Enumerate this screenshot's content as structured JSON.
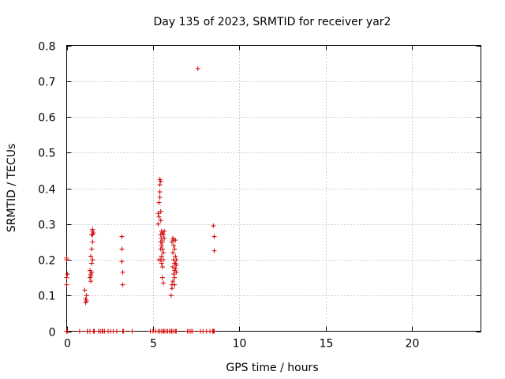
{
  "chart_data": {
    "type": "scatter",
    "title": "Day 135 of 2023, SRMTID for receiver yar2",
    "xlabel": "GPS time / hours",
    "ylabel": "SRMTID / TECUs",
    "xlim": [
      0,
      24
    ],
    "ylim": [
      0,
      0.8
    ],
    "xticks": [
      0,
      5,
      10,
      15,
      20
    ],
    "yticks": [
      0,
      0.1,
      0.2,
      0.3,
      0.4,
      0.5,
      0.6,
      0.7,
      0.8
    ],
    "xtick_labels": [
      "0",
      "5",
      "10",
      "15",
      "20"
    ],
    "ytick_labels": [
      "0",
      "0.1",
      "0.2",
      "0.3",
      "0.4",
      "0.5",
      "0.6",
      "0.7",
      "0.8"
    ],
    "grid": true,
    "marker": "+",
    "color": "#d00000",
    "series": [
      {
        "name": "SRMTID",
        "x": [
          0.0,
          0.0,
          0.0,
          0.0,
          0.0,
          0.05,
          0.05,
          0.75,
          1.05,
          1.1,
          1.1,
          1.15,
          1.15,
          1.2,
          1.2,
          1.35,
          1.35,
          1.35,
          1.4,
          1.4,
          1.4,
          1.4,
          1.45,
          1.45,
          1.45,
          1.45,
          1.5,
          1.5,
          1.5,
          1.5,
          1.5,
          1.55,
          1.55,
          1.6,
          1.85,
          1.95,
          2.05,
          2.1,
          2.2,
          2.4,
          2.55,
          2.7,
          2.9,
          3.2,
          3.2,
          3.2,
          3.25,
          3.25,
          3.25,
          3.3,
          3.8,
          4.85,
          5.0,
          5.15,
          5.3,
          5.3,
          5.3,
          5.35,
          5.35,
          5.35,
          5.4,
          5.4,
          5.4,
          5.4,
          5.4,
          5.45,
          5.45,
          5.45,
          5.45,
          5.45,
          5.45,
          5.45,
          5.5,
          5.5,
          5.5,
          5.5,
          5.5,
          5.5,
          5.55,
          5.55,
          5.55,
          5.55,
          5.55,
          5.6,
          5.6,
          5.6,
          5.6,
          5.6,
          5.65,
          5.65,
          5.65,
          5.75,
          5.85,
          5.95,
          6.05,
          6.05,
          6.1,
          6.1,
          6.1,
          6.1,
          6.15,
          6.15,
          6.15,
          6.15,
          6.2,
          6.2,
          6.2,
          6.2,
          6.2,
          6.25,
          6.25,
          6.25,
          6.25,
          6.25,
          6.3,
          6.3,
          6.3,
          6.3,
          6.3,
          6.35,
          6.35,
          6.35,
          6.35,
          7.0,
          7.1,
          7.2,
          7.3,
          7.6,
          7.75,
          7.9,
          8.1,
          8.3,
          8.45,
          8.5,
          8.5,
          8.55,
          8.55,
          8.55
        ],
        "y": [
          0.0,
          0.13,
          0.15,
          0.2,
          0.205,
          0.16,
          0.0,
          0.0,
          0.115,
          0.08,
          0.09,
          0.1,
          0.085,
          0.0,
          0.0,
          0.0,
          0.17,
          0.15,
          0.14,
          0.155,
          0.16,
          0.21,
          0.23,
          0.27,
          0.165,
          0.19,
          0.28,
          0.285,
          0.25,
          0.27,
          0.2,
          0.275,
          0.0,
          0.0,
          0.0,
          0.0,
          0.0,
          0.0,
          0.0,
          0.0,
          0.0,
          0.0,
          0.0,
          0.265,
          0.23,
          0.195,
          0.165,
          0.13,
          0.0,
          0.0,
          0.0,
          0.0,
          0.0,
          0.0,
          0.33,
          0.3,
          0.0,
          0.36,
          0.32,
          0.2,
          0.425,
          0.41,
          0.39,
          0.375,
          0.0,
          0.42,
          0.335,
          0.31,
          0.27,
          0.25,
          0.2,
          0.23,
          0.28,
          0.26,
          0.24,
          0.21,
          0.19,
          0.0,
          0.275,
          0.25,
          0.23,
          0.18,
          0.15,
          0.27,
          0.22,
          0.2,
          0.135,
          0.0,
          0.28,
          0.26,
          0.0,
          0.0,
          0.0,
          0.0,
          0.1,
          0.0,
          0.13,
          0.12,
          0.25,
          0.0,
          0.26,
          0.22,
          0.18,
          0.14,
          0.255,
          0.24,
          0.2,
          0.16,
          0.0,
          0.23,
          0.19,
          0.17,
          0.15,
          0.13,
          0.255,
          0.21,
          0.19,
          0.175,
          0.0,
          0.2,
          0.185,
          0.165,
          0.0,
          0.0,
          0.0,
          0.0,
          0.0,
          0.735,
          0.0,
          0.0,
          0.0,
          0.0,
          0.0,
          0.295,
          0.0,
          0.265,
          0.225,
          0.0
        ]
      }
    ]
  }
}
